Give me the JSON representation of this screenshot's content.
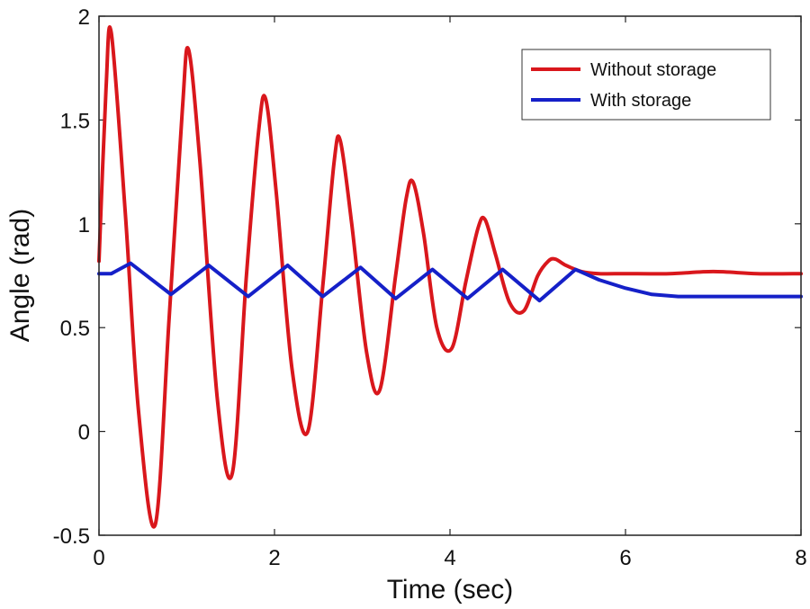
{
  "chart_data": {
    "type": "line",
    "title": "",
    "xlabel": "Time (sec)",
    "ylabel": "Angle (rad)",
    "xlim": [
      0,
      8
    ],
    "ylim": [
      -0.5,
      2
    ],
    "xticks": [
      0,
      2,
      4,
      6,
      8
    ],
    "xtick_labels": [
      "0",
      "2",
      "4",
      "6",
      "8"
    ],
    "yticks": [
      -0.5,
      0,
      0.5,
      1,
      1.5,
      2
    ],
    "ytick_labels": [
      "-0.5",
      "0",
      "0.5",
      "1",
      "1.5",
      "2"
    ],
    "grid": false,
    "legend_position": "top-right",
    "series": [
      {
        "name": "Without storage",
        "color": "#d9171c",
        "x": [
          0,
          0.08,
          0.14,
          0.3,
          0.45,
          0.64,
          0.8,
          0.95,
          1.02,
          1.15,
          1.35,
          1.52,
          1.68,
          1.82,
          1.9,
          2.02,
          2.2,
          2.38,
          2.55,
          2.68,
          2.75,
          2.88,
          3.05,
          3.2,
          3.38,
          3.5,
          3.58,
          3.7,
          3.85,
          4.02,
          4.18,
          4.32,
          4.4,
          4.52,
          4.68,
          4.84,
          5.0,
          5.12,
          5.2,
          5.32,
          5.5,
          5.7,
          6.0,
          6.5,
          7.0,
          7.5,
          8.0
        ],
        "y": [
          0.82,
          1.65,
          1.92,
          1.05,
          0.1,
          -0.45,
          0.55,
          1.55,
          1.84,
          1.3,
          0.15,
          -0.2,
          0.75,
          1.45,
          1.6,
          1.15,
          0.3,
          0.0,
          0.7,
          1.3,
          1.4,
          1.0,
          0.38,
          0.2,
          0.75,
          1.12,
          1.2,
          0.95,
          0.5,
          0.4,
          0.72,
          0.98,
          1.02,
          0.85,
          0.62,
          0.58,
          0.75,
          0.82,
          0.83,
          0.8,
          0.77,
          0.76,
          0.76,
          0.76,
          0.77,
          0.76,
          0.76
        ]
      },
      {
        "name": "With storage",
        "color": "#1520c8",
        "x": [
          0,
          0.14,
          0.36,
          0.82,
          1.25,
          1.7,
          2.15,
          2.55,
          2.98,
          3.38,
          3.8,
          4.2,
          4.6,
          5.02,
          5.43,
          5.7,
          6.0,
          6.3,
          6.6,
          7.0,
          7.5,
          8.0
        ],
        "y": [
          0.76,
          0.76,
          0.81,
          0.66,
          0.8,
          0.65,
          0.8,
          0.65,
          0.79,
          0.64,
          0.78,
          0.64,
          0.78,
          0.63,
          0.78,
          0.73,
          0.69,
          0.66,
          0.65,
          0.65,
          0.65,
          0.65
        ]
      }
    ]
  }
}
